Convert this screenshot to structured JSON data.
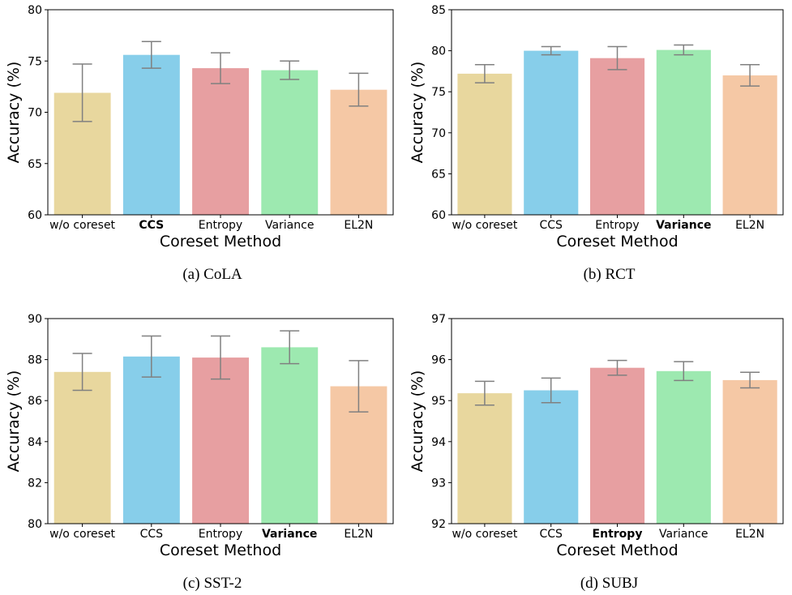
{
  "chart_data": [
    {
      "type": "bar",
      "caption": "(a) CoLA",
      "xlabel": "Coreset Method",
      "ylabel": "Accuracy (%)",
      "ylim": [
        60,
        80
      ],
      "yticks": [
        60,
        65,
        70,
        75,
        80
      ],
      "categories": [
        "w/o coreset",
        "CCS",
        "Entropy",
        "Variance",
        "EL2N"
      ],
      "bold_category": "CCS",
      "values": [
        71.9,
        75.6,
        74.3,
        74.1,
        72.2
      ],
      "errors": [
        2.8,
        1.3,
        1.5,
        0.9,
        1.6
      ],
      "colors": [
        "#e8d79e",
        "#87ceea",
        "#e79fa1",
        "#9de9b0",
        "#f5c8a5"
      ]
    },
    {
      "type": "bar",
      "caption": "(b) RCT",
      "xlabel": "Coreset Method",
      "ylabel": "Accuracy (%)",
      "ylim": [
        60,
        85
      ],
      "yticks": [
        60,
        65,
        70,
        75,
        80,
        85
      ],
      "categories": [
        "w/o coreset",
        "CCS",
        "Entropy",
        "Variance",
        "EL2N"
      ],
      "bold_category": "Variance",
      "values": [
        77.2,
        80.0,
        79.1,
        80.1,
        77.0
      ],
      "errors": [
        1.1,
        0.5,
        1.4,
        0.6,
        1.3
      ],
      "colors": [
        "#e8d79e",
        "#87ceea",
        "#e79fa1",
        "#9de9b0",
        "#f5c8a5"
      ]
    },
    {
      "type": "bar",
      "caption": "(c) SST-2",
      "xlabel": "Coreset Method",
      "ylabel": "Accuracy (%)",
      "ylim": [
        80,
        90
      ],
      "yticks": [
        80,
        82,
        84,
        86,
        88,
        90
      ],
      "categories": [
        "w/o coreset",
        "CCS",
        "Entropy",
        "Variance",
        "EL2N"
      ],
      "bold_category": "Variance",
      "values": [
        87.4,
        88.15,
        88.1,
        88.6,
        86.7
      ],
      "errors": [
        0.9,
        1.0,
        1.05,
        0.8,
        1.25
      ],
      "colors": [
        "#e8d79e",
        "#87ceea",
        "#e79fa1",
        "#9de9b0",
        "#f5c8a5"
      ]
    },
    {
      "type": "bar",
      "caption": "(d) SUBJ",
      "xlabel": "Coreset Method",
      "ylabel": "Accuracy (%)",
      "ylim": [
        92,
        97
      ],
      "yticks": [
        92,
        93,
        94,
        95,
        96,
        97
      ],
      "categories": [
        "w/o coreset",
        "CCS",
        "Entropy",
        "Variance",
        "EL2N"
      ],
      "bold_category": "Entropy",
      "values": [
        95.18,
        95.25,
        95.8,
        95.72,
        95.5
      ],
      "errors": [
        0.29,
        0.3,
        0.18,
        0.23,
        0.19
      ],
      "colors": [
        "#e8d79e",
        "#87ceea",
        "#e79fa1",
        "#9de9b0",
        "#f5c8a5"
      ]
    }
  ]
}
